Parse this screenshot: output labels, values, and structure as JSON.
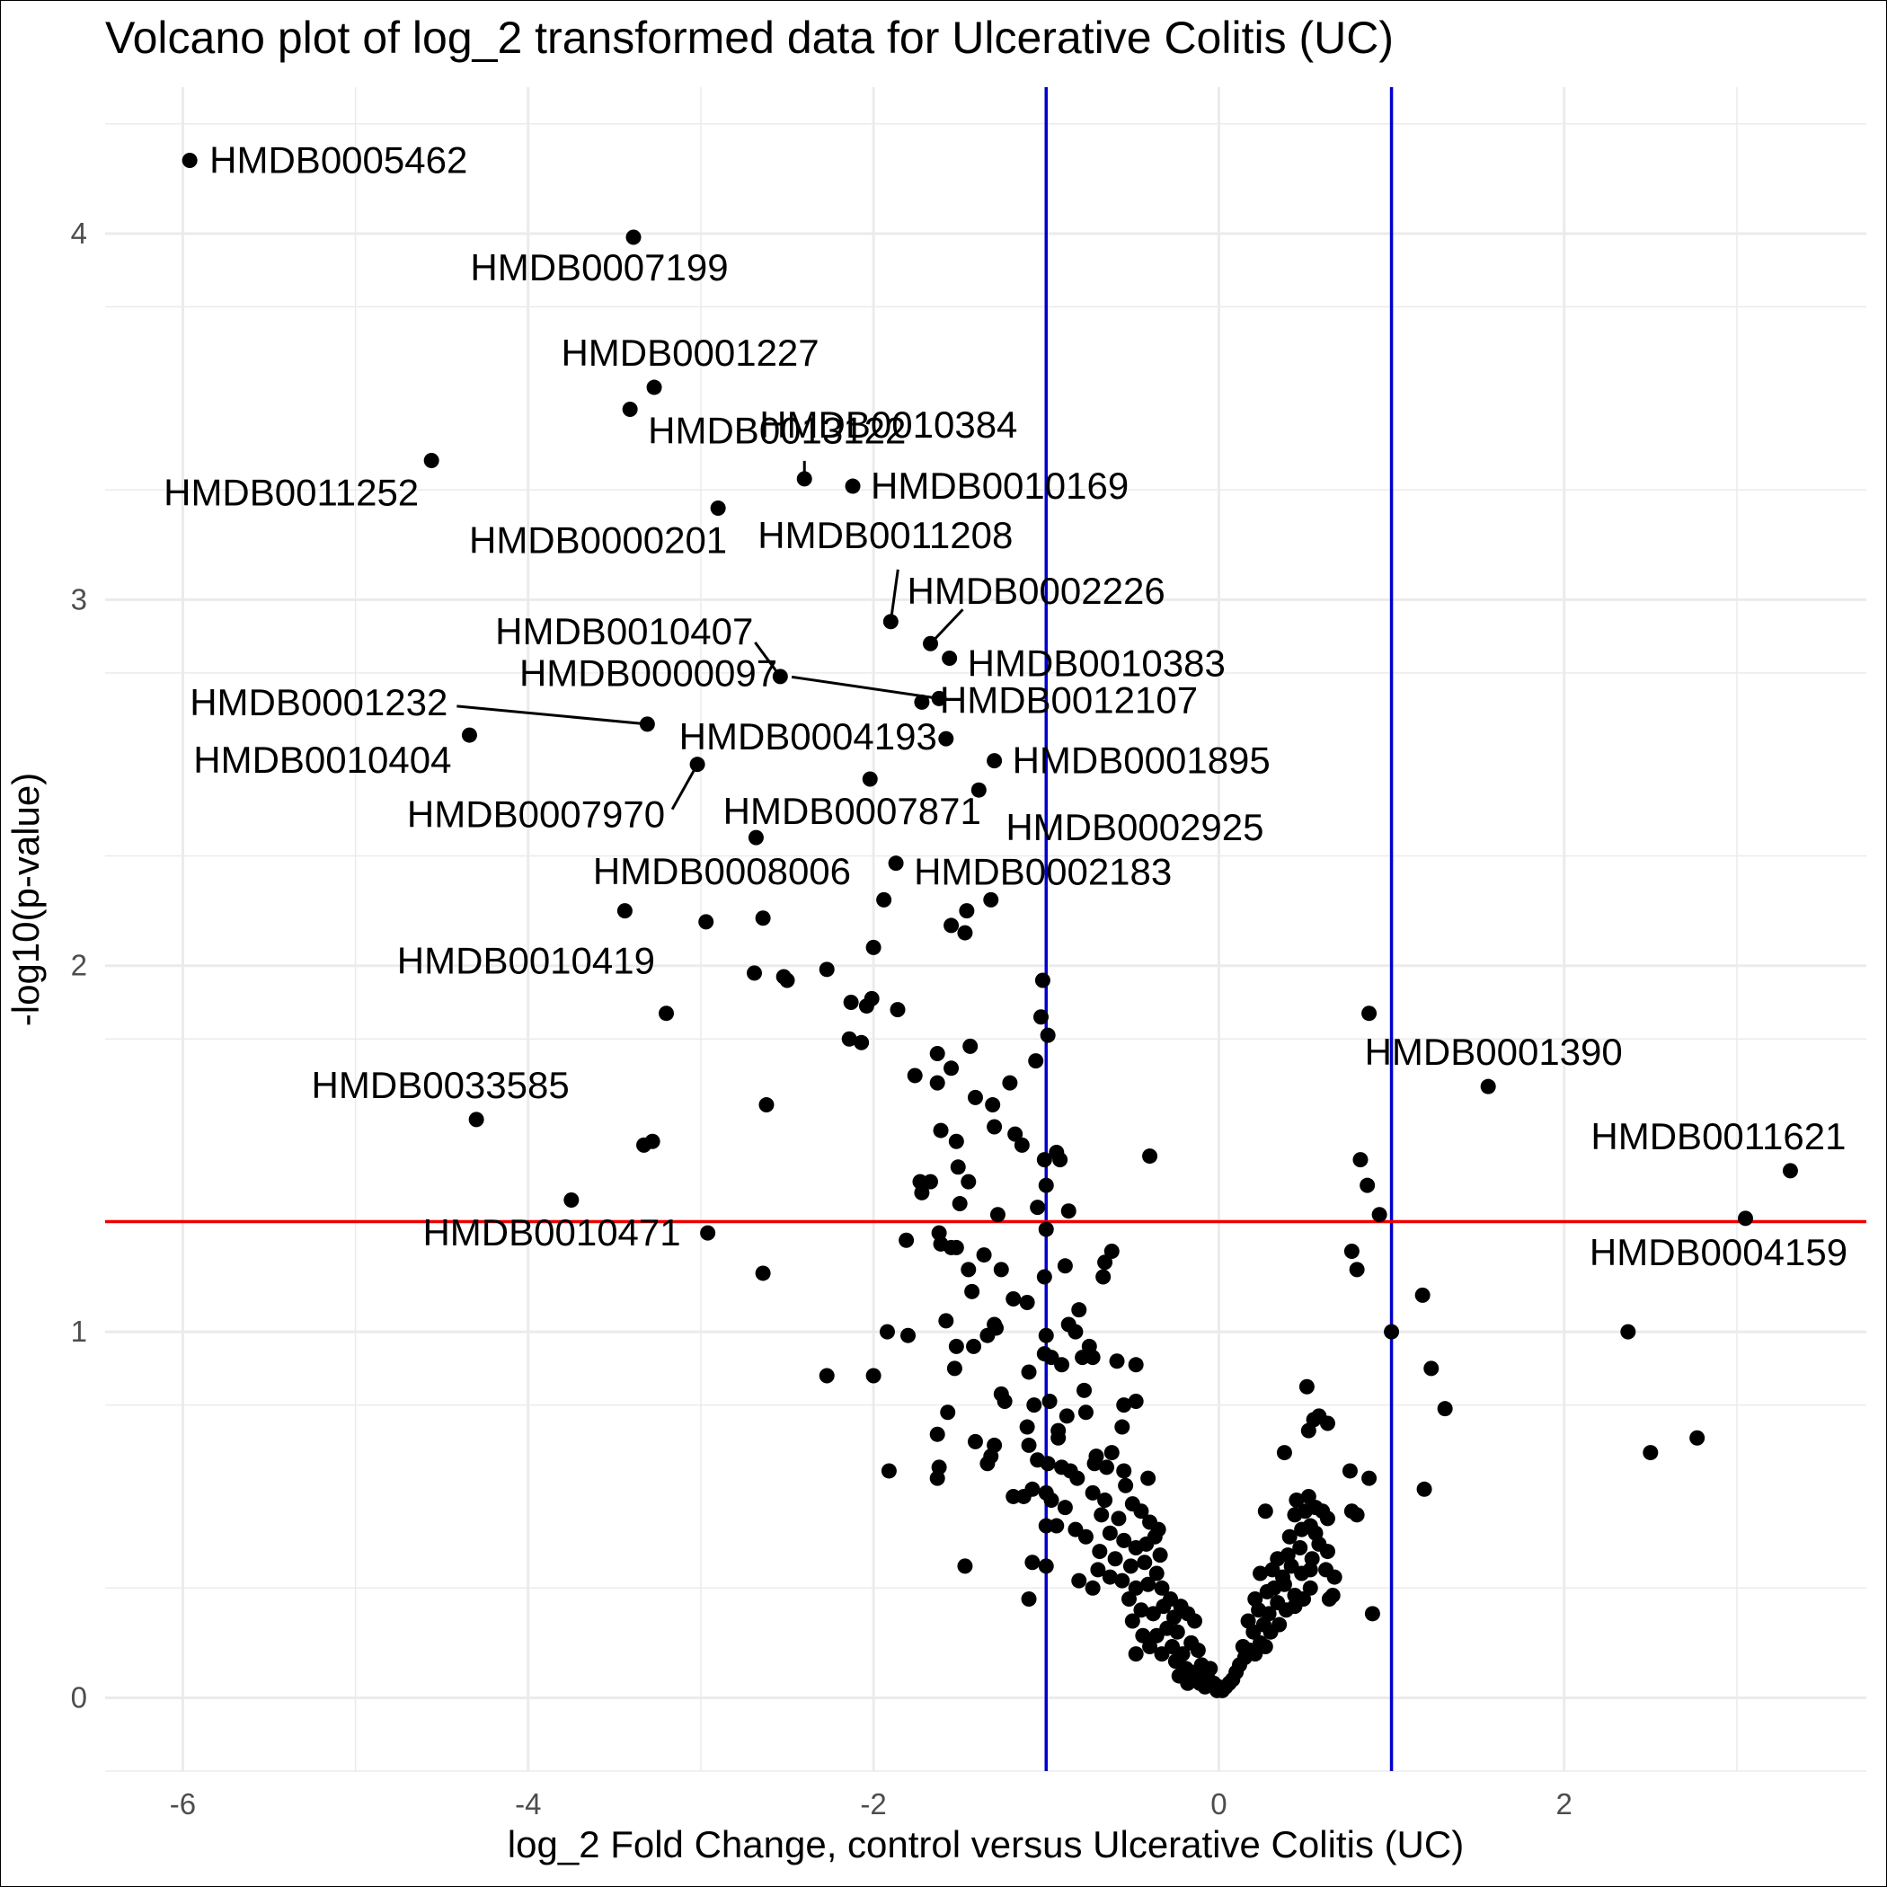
{
  "chart_data": {
    "type": "scatter",
    "title": "Volcano plot of log_2 transformed data for Ulcerative Colitis (UC)",
    "xlabel": "log_2 Fold Change, control versus Ulcerative Colitis (UC)",
    "ylabel": "-log10(p-value)",
    "xlim": [
      -6.45,
      3.75
    ],
    "ylim": [
      -0.2,
      4.4
    ],
    "x_ticks": [
      -6,
      -4,
      -2,
      0,
      2
    ],
    "y_ticks": [
      0,
      1,
      2,
      3,
      4
    ],
    "grid": true,
    "colors": {
      "points": "#000000",
      "fold_change_threshold": "#0000cc",
      "significance_threshold": "#ee0000",
      "grid": "#ebebeb"
    },
    "reference_lines": {
      "vertical": [
        -1,
        1
      ],
      "horizontal": 1.301
    },
    "labeled_points": [
      {
        "name": "HMDB0005462",
        "x": -5.96,
        "y": 4.2
      },
      {
        "name": "HMDB0007199",
        "x": -3.39,
        "y": 3.99
      },
      {
        "name": "HMDB0001227",
        "x": -3.27,
        "y": 3.58
      },
      {
        "name": "HMDB0013122",
        "x": -3.41,
        "y": 3.52
      },
      {
        "name": "HMDB0011252",
        "x": -4.56,
        "y": 3.38
      },
      {
        "name": "HMDB0010384",
        "x": -2.4,
        "y": 3.33
      },
      {
        "name": "HMDB0010169",
        "x": -2.12,
        "y": 3.31
      },
      {
        "name": "HMDB0000201",
        "x": -2.9,
        "y": 3.25
      },
      {
        "name": "HMDB0011208",
        "x": -1.9,
        "y": 2.94
      },
      {
        "name": "HMDB0002226",
        "x": -1.67,
        "y": 2.88
      },
      {
        "name": "HMDB0010383",
        "x": -1.56,
        "y": 2.84
      },
      {
        "name": "HMDB0010407",
        "x": -2.54,
        "y": 2.79
      },
      {
        "name": "HMDB0012107",
        "x": -1.72,
        "y": 2.72
      },
      {
        "name": "HMDB0000097",
        "x": -1.62,
        "y": 2.73
      },
      {
        "name": "HMDB0001232",
        "x": -3.31,
        "y": 2.66
      },
      {
        "name": "HMDB0010404",
        "x": -4.34,
        "y": 2.63
      },
      {
        "name": "HMDB0004193",
        "x": -1.58,
        "y": 2.62
      },
      {
        "name": "HMDB0001895",
        "x": -1.3,
        "y": 2.56
      },
      {
        "name": "HMDB0007970",
        "x": -3.02,
        "y": 2.55
      },
      {
        "name": "HMDB0007871",
        "x": -2.02,
        "y": 2.51
      },
      {
        "name": "HMDB0002925",
        "x": -1.39,
        "y": 2.48
      },
      {
        "name": "HMDB0008006",
        "x": -2.68,
        "y": 2.35
      },
      {
        "name": "HMDB0002183",
        "x": -1.87,
        "y": 2.28
      },
      {
        "name": "HMDB0010419",
        "x": -3.44,
        "y": 2.15
      },
      {
        "name": "HMDB0033585",
        "x": -4.3,
        "y": 1.58
      },
      {
        "name": "HMDB0010471",
        "x": -2.96,
        "y": 1.27
      },
      {
        "name": "HMDB0001390",
        "x": 1.56,
        "y": 1.67
      },
      {
        "name": "HMDB0011621",
        "x": 3.31,
        "y": 1.44
      },
      {
        "name": "HMDB0004159",
        "x": 3.05,
        "y": 1.31
      }
    ],
    "points": [
      [
        -2.97,
        2.12
      ],
      [
        -2.64,
        2.13
      ],
      [
        -1.94,
        2.18
      ],
      [
        -1.32,
        2.18
      ],
      [
        -1.55,
        2.11
      ],
      [
        -1.47,
        2.09
      ],
      [
        -1.46,
        2.15
      ],
      [
        -2.0,
        2.05
      ],
      [
        -2.27,
        1.99
      ],
      [
        -2.52,
        1.97
      ],
      [
        -2.5,
        1.96
      ],
      [
        -2.69,
        1.98
      ],
      [
        -3.2,
        1.87
      ],
      [
        -1.02,
        1.96
      ],
      [
        -1.03,
        1.86
      ],
      [
        -1.86,
        1.88
      ],
      [
        -2.01,
        1.91
      ],
      [
        -2.13,
        1.9
      ],
      [
        -2.04,
        1.89
      ],
      [
        -0.99,
        1.81
      ],
      [
        -1.44,
        1.78
      ],
      [
        -2.14,
        1.8
      ],
      [
        -2.07,
        1.79
      ],
      [
        -1.63,
        1.76
      ],
      [
        -1.55,
        1.72
      ],
      [
        -1.06,
        1.74
      ],
      [
        -1.76,
        1.7
      ],
      [
        -1.63,
        1.68
      ],
      [
        -1.21,
        1.68
      ],
      [
        -1.41,
        1.64
      ],
      [
        -1.31,
        1.62
      ],
      [
        -2.62,
        1.62
      ],
      [
        -1.61,
        1.55
      ],
      [
        -1.3,
        1.56
      ],
      [
        -1.18,
        1.54
      ],
      [
        -1.52,
        1.52
      ],
      [
        -1.14,
        1.51
      ],
      [
        -3.33,
        1.51
      ],
      [
        -3.28,
        1.52
      ],
      [
        -1.01,
        1.47
      ],
      [
        -0.94,
        1.49
      ],
      [
        -0.92,
        1.47
      ],
      [
        -0.4,
        1.48
      ],
      [
        -1.51,
        1.45
      ],
      [
        -1.73,
        1.41
      ],
      [
        -1.67,
        1.41
      ],
      [
        -1.45,
        1.41
      ],
      [
        -1.72,
        1.38
      ],
      [
        -1.0,
        1.4
      ],
      [
        -1.5,
        1.35
      ],
      [
        -1.05,
        1.34
      ],
      [
        -0.87,
        1.33
      ],
      [
        -1.28,
        1.32
      ],
      [
        -3.75,
        1.36
      ],
      [
        -1.62,
        1.27
      ],
      [
        -1.0,
        1.28
      ],
      [
        -1.81,
        1.25
      ],
      [
        -1.61,
        1.24
      ],
      [
        -1.55,
        1.23
      ],
      [
        -1.52,
        1.23
      ],
      [
        -1.36,
        1.21
      ],
      [
        -0.62,
        1.22
      ],
      [
        -1.45,
        1.17
      ],
      [
        -1.26,
        1.17
      ],
      [
        -0.89,
        1.18
      ],
      [
        -0.66,
        1.19
      ],
      [
        -2.64,
        1.16
      ],
      [
        -1.01,
        1.15
      ],
      [
        -1.43,
        1.11
      ],
      [
        -1.19,
        1.09
      ],
      [
        -0.67,
        1.15
      ],
      [
        -1.11,
        1.08
      ],
      [
        -0.81,
        1.06
      ],
      [
        -1.58,
        1.03
      ],
      [
        -1.3,
        1.02
      ],
      [
        -1.29,
        1.01
      ],
      [
        -1.34,
        0.99
      ],
      [
        -0.87,
        1.02
      ],
      [
        -0.83,
        1.0
      ],
      [
        -1.92,
        1.0
      ],
      [
        -1.8,
        0.99
      ],
      [
        -1.52,
        0.96
      ],
      [
        -1.42,
        0.96
      ],
      [
        -1.0,
        0.99
      ],
      [
        -0.75,
        0.96
      ],
      [
        -0.79,
        0.93
      ],
      [
        -0.73,
        0.93
      ],
      [
        -1.53,
        0.9
      ],
      [
        -1.01,
        0.94
      ],
      [
        -0.97,
        0.93
      ],
      [
        -0.91,
        0.91
      ],
      [
        -0.59,
        0.92
      ],
      [
        -0.48,
        0.91
      ],
      [
        -1.1,
        0.89
      ],
      [
        -2.27,
        0.88
      ],
      [
        -2.0,
        0.88
      ],
      [
        -1.26,
        0.83
      ],
      [
        -0.78,
        0.84
      ],
      [
        -1.24,
        0.81
      ],
      [
        -1.07,
        0.8
      ],
      [
        -0.98,
        0.81
      ],
      [
        -0.88,
        0.77
      ],
      [
        -0.77,
        0.78
      ],
      [
        -0.55,
        0.8
      ],
      [
        -0.48,
        0.81
      ],
      [
        -1.57,
        0.78
      ],
      [
        -1.11,
        0.74
      ],
      [
        -0.93,
        0.73
      ],
      [
        -0.56,
        0.74
      ],
      [
        -1.63,
        0.72
      ],
      [
        -1.41,
        0.7
      ],
      [
        -1.3,
        0.69
      ],
      [
        -1.1,
        0.69
      ],
      [
        -0.93,
        0.71
      ],
      [
        -0.71,
        0.66
      ],
      [
        -0.62,
        0.67
      ],
      [
        -1.32,
        0.66
      ],
      [
        -1.05,
        0.65
      ],
      [
        -0.99,
        0.64
      ],
      [
        -0.91,
        0.63
      ],
      [
        -0.86,
        0.62
      ],
      [
        -0.72,
        0.64
      ],
      [
        -0.65,
        0.63
      ],
      [
        -0.55,
        0.62
      ],
      [
        -1.91,
        0.62
      ],
      [
        -1.62,
        0.63
      ],
      [
        -1.34,
        0.64
      ],
      [
        -1.63,
        0.6
      ],
      [
        -1.08,
        0.57
      ],
      [
        -0.82,
        0.6
      ],
      [
        -0.54,
        0.58
      ],
      [
        -0.41,
        0.6
      ],
      [
        -1.0,
        0.56
      ],
      [
        -0.73,
        0.56
      ],
      [
        -0.66,
        0.54
      ],
      [
        -0.5,
        0.53
      ],
      [
        -1.19,
        0.55
      ],
      [
        -1.13,
        0.55
      ],
      [
        -0.97,
        0.54
      ],
      [
        -0.89,
        0.52
      ],
      [
        -0.68,
        0.5
      ],
      [
        -0.58,
        0.49
      ],
      [
        -0.45,
        0.51
      ],
      [
        -0.4,
        0.48
      ],
      [
        -0.35,
        0.46
      ],
      [
        -1.0,
        0.47
      ],
      [
        -0.94,
        0.47
      ],
      [
        -0.83,
        0.46
      ],
      [
        -0.77,
        0.44
      ],
      [
        -0.63,
        0.45
      ],
      [
        -0.55,
        0.43
      ],
      [
        -0.48,
        0.41
      ],
      [
        -0.42,
        0.42
      ],
      [
        -0.37,
        0.44
      ],
      [
        -0.34,
        0.39
      ],
      [
        -0.69,
        0.4
      ],
      [
        -0.6,
        0.38
      ],
      [
        -0.51,
        0.36
      ],
      [
        -0.43,
        0.37
      ],
      [
        -0.36,
        0.34
      ],
      [
        -0.7,
        0.35
      ],
      [
        -0.63,
        0.33
      ],
      [
        -0.56,
        0.32
      ],
      [
        -0.48,
        0.3
      ],
      [
        -0.41,
        0.31
      ],
      [
        -0.33,
        0.3
      ],
      [
        -0.28,
        0.27
      ],
      [
        -0.81,
        0.32
      ],
      [
        -0.73,
        0.3
      ],
      [
        -1.0,
        0.36
      ],
      [
        -1.47,
        0.36
      ],
      [
        -1.08,
        0.37
      ],
      [
        -1.1,
        0.27
      ],
      [
        -0.52,
        0.27
      ],
      [
        -0.45,
        0.24
      ],
      [
        -0.38,
        0.23
      ],
      [
        -0.32,
        0.25
      ],
      [
        -0.26,
        0.22
      ],
      [
        -0.22,
        0.25
      ],
      [
        -0.18,
        0.23
      ],
      [
        -0.14,
        0.21
      ],
      [
        -0.24,
        0.18
      ],
      [
        -0.3,
        0.19
      ],
      [
        -0.36,
        0.17
      ],
      [
        -0.44,
        0.17
      ],
      [
        -0.5,
        0.21
      ],
      [
        -0.48,
        0.12
      ],
      [
        -0.4,
        0.14
      ],
      [
        -0.33,
        0.12
      ],
      [
        -0.27,
        0.14
      ],
      [
        -0.21,
        0.12
      ],
      [
        -0.16,
        0.15
      ],
      [
        -0.12,
        0.13
      ],
      [
        -0.25,
        0.1
      ],
      [
        -0.19,
        0.08
      ],
      [
        -0.14,
        0.07
      ],
      [
        -0.1,
        0.09
      ],
      [
        -0.07,
        0.06
      ],
      [
        -0.05,
        0.08
      ],
      [
        -0.23,
        0.06
      ],
      [
        -0.18,
        0.04
      ],
      [
        -0.11,
        0.04
      ],
      [
        -0.08,
        0.03
      ],
      [
        -0.06,
        0.05
      ],
      [
        -0.03,
        0.04
      ],
      [
        -0.01,
        0.02
      ],
      [
        0.0,
        0.03
      ],
      [
        0.02,
        0.02
      ],
      [
        0.04,
        0.03
      ],
      [
        0.06,
        0.04
      ],
      [
        0.08,
        0.05
      ],
      [
        0.1,
        0.07
      ],
      [
        0.12,
        0.09
      ],
      [
        0.15,
        0.11
      ],
      [
        0.18,
        0.13
      ],
      [
        0.21,
        0.12
      ],
      [
        0.24,
        0.15
      ],
      [
        0.27,
        0.14
      ],
      [
        0.14,
        0.14
      ],
      [
        0.2,
        0.18
      ],
      [
        0.26,
        0.2
      ],
      [
        0.3,
        0.18
      ],
      [
        0.35,
        0.2
      ],
      [
        0.17,
        0.21
      ],
      [
        0.23,
        0.24
      ],
      [
        0.29,
        0.23
      ],
      [
        0.34,
        0.26
      ],
      [
        0.39,
        0.24
      ],
      [
        0.44,
        0.25
      ],
      [
        0.21,
        0.27
      ],
      [
        0.28,
        0.29
      ],
      [
        0.32,
        0.3
      ],
      [
        0.38,
        0.31
      ],
      [
        0.44,
        0.28
      ],
      [
        0.49,
        0.27
      ],
      [
        0.53,
        0.3
      ],
      [
        0.24,
        0.34
      ],
      [
        0.31,
        0.35
      ],
      [
        0.37,
        0.33
      ],
      [
        0.42,
        0.36
      ],
      [
        0.48,
        0.34
      ],
      [
        0.53,
        0.35
      ],
      [
        0.62,
        0.35
      ],
      [
        0.67,
        0.33
      ],
      [
        0.34,
        0.38
      ],
      [
        0.4,
        0.39
      ],
      [
        0.47,
        0.41
      ],
      [
        0.54,
        0.38
      ],
      [
        0.58,
        0.42
      ],
      [
        0.63,
        0.4
      ],
      [
        0.41,
        0.44
      ],
      [
        0.48,
        0.46
      ],
      [
        0.53,
        0.47
      ],
      [
        0.56,
        0.45
      ],
      [
        0.44,
        0.5
      ],
      [
        0.5,
        0.51
      ],
      [
        0.56,
        0.52
      ],
      [
        0.6,
        0.51
      ],
      [
        0.63,
        0.49
      ],
      [
        0.77,
        0.51
      ],
      [
        0.45,
        0.54
      ],
      [
        0.52,
        0.55
      ],
      [
        0.8,
        0.5
      ],
      [
        0.27,
        0.51
      ],
      [
        0.76,
        0.62
      ],
      [
        0.87,
        0.6
      ],
      [
        0.38,
        0.67
      ],
      [
        0.52,
        0.73
      ],
      [
        0.55,
        0.76
      ],
      [
        0.58,
        0.77
      ],
      [
        0.63,
        0.75
      ],
      [
        0.51,
        0.85
      ],
      [
        0.64,
        0.27
      ],
      [
        0.89,
        0.23
      ],
      [
        1.19,
        0.57
      ],
      [
        0.47,
        0.27
      ],
      [
        0.66,
        0.28
      ],
      [
        1.18,
        1.1
      ],
      [
        1.23,
        0.9
      ],
      [
        1.31,
        0.79
      ],
      [
        1.0,
        1.0
      ],
      [
        0.93,
        1.32
      ],
      [
        0.77,
        1.22
      ],
      [
        0.8,
        1.17
      ],
      [
        0.86,
        1.4
      ],
      [
        0.82,
        1.47
      ],
      [
        0.87,
        1.87
      ],
      [
        2.37,
        1.0
      ],
      [
        2.5,
        0.67
      ],
      [
        2.77,
        0.71
      ]
    ]
  }
}
